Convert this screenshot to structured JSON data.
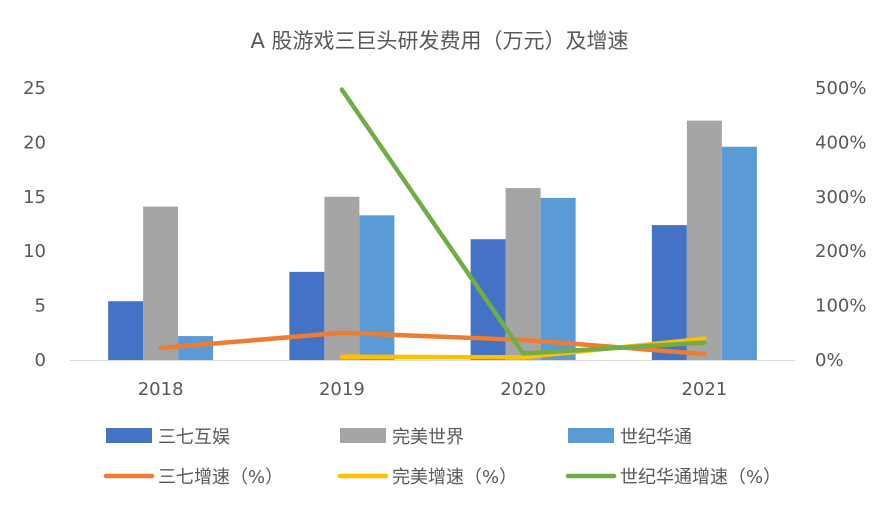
{
  "chart_data": {
    "type": "bar",
    "title": "A 股游戏三巨头研发费用（万元）及增速",
    "categories": [
      "2018",
      "2019",
      "2020",
      "2021"
    ],
    "y_left": {
      "ticks": [
        "0",
        "5",
        "10",
        "15",
        "20",
        "25"
      ],
      "ylim": [
        0,
        25
      ]
    },
    "y_right": {
      "ticks": [
        "0%",
        "100%",
        "200%",
        "300%",
        "400%",
        "500%"
      ],
      "ylim": [
        0,
        500
      ]
    },
    "series": [
      {
        "name": "三七互娱",
        "kind": "bar",
        "axis": "left",
        "color": "#4472C4",
        "values": [
          5.4,
          8.1,
          11.1,
          12.4
        ]
      },
      {
        "name": "完美世界",
        "kind": "bar",
        "axis": "left",
        "color": "#A5A5A5",
        "values": [
          14.1,
          15.0,
          15.8,
          22.0
        ]
      },
      {
        "name": "世纪华通",
        "kind": "bar",
        "axis": "left",
        "color": "#5B9BD5",
        "values": [
          2.2,
          13.3,
          14.9,
          19.6
        ]
      },
      {
        "name": "三七增速（%）",
        "kind": "line",
        "axis": "right",
        "color": "#ED7D31",
        "values": [
          22,
          50,
          37,
          11
        ]
      },
      {
        "name": "完美增速（%）",
        "kind": "line",
        "axis": "right",
        "color": "#FFC000",
        "values": [
          null,
          6,
          5,
          39
        ]
      },
      {
        "name": "世纪华通增速（%）",
        "kind": "line",
        "axis": "right",
        "color": "#70AD47",
        "values": [
          null,
          497,
          12,
          32
        ]
      }
    ],
    "legend_position": "bottom",
    "grid": false
  }
}
